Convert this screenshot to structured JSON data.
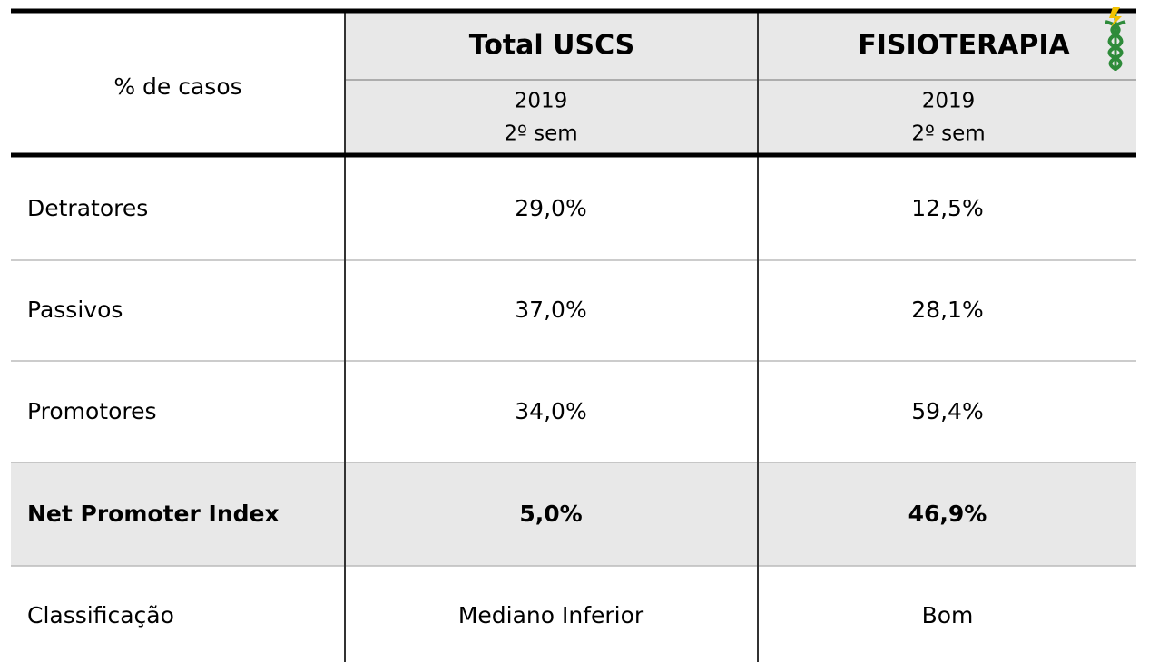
{
  "table": {
    "header": {
      "label": "% de casos"
    },
    "columns": [
      {
        "title": "Total USCS",
        "year": "2019",
        "period": "2º sem"
      },
      {
        "title": "FISIOTERAPIA",
        "year": "2019",
        "period": "2º sem"
      }
    ],
    "rows": [
      {
        "label": "Detratores",
        "values": [
          "29,0%",
          "12,5%"
        ]
      },
      {
        "label": "Passivos",
        "values": [
          "37,0%",
          "28,1%"
        ]
      },
      {
        "label": "Promotores",
        "values": [
          "34,0%",
          "59,4%"
        ]
      },
      {
        "label": "Net Promoter Index",
        "values": [
          "5,0%",
          "46,9%"
        ]
      },
      {
        "label": "Classificação",
        "values": [
          "Mediano Inferior",
          "Bom"
        ]
      }
    ]
  }
}
